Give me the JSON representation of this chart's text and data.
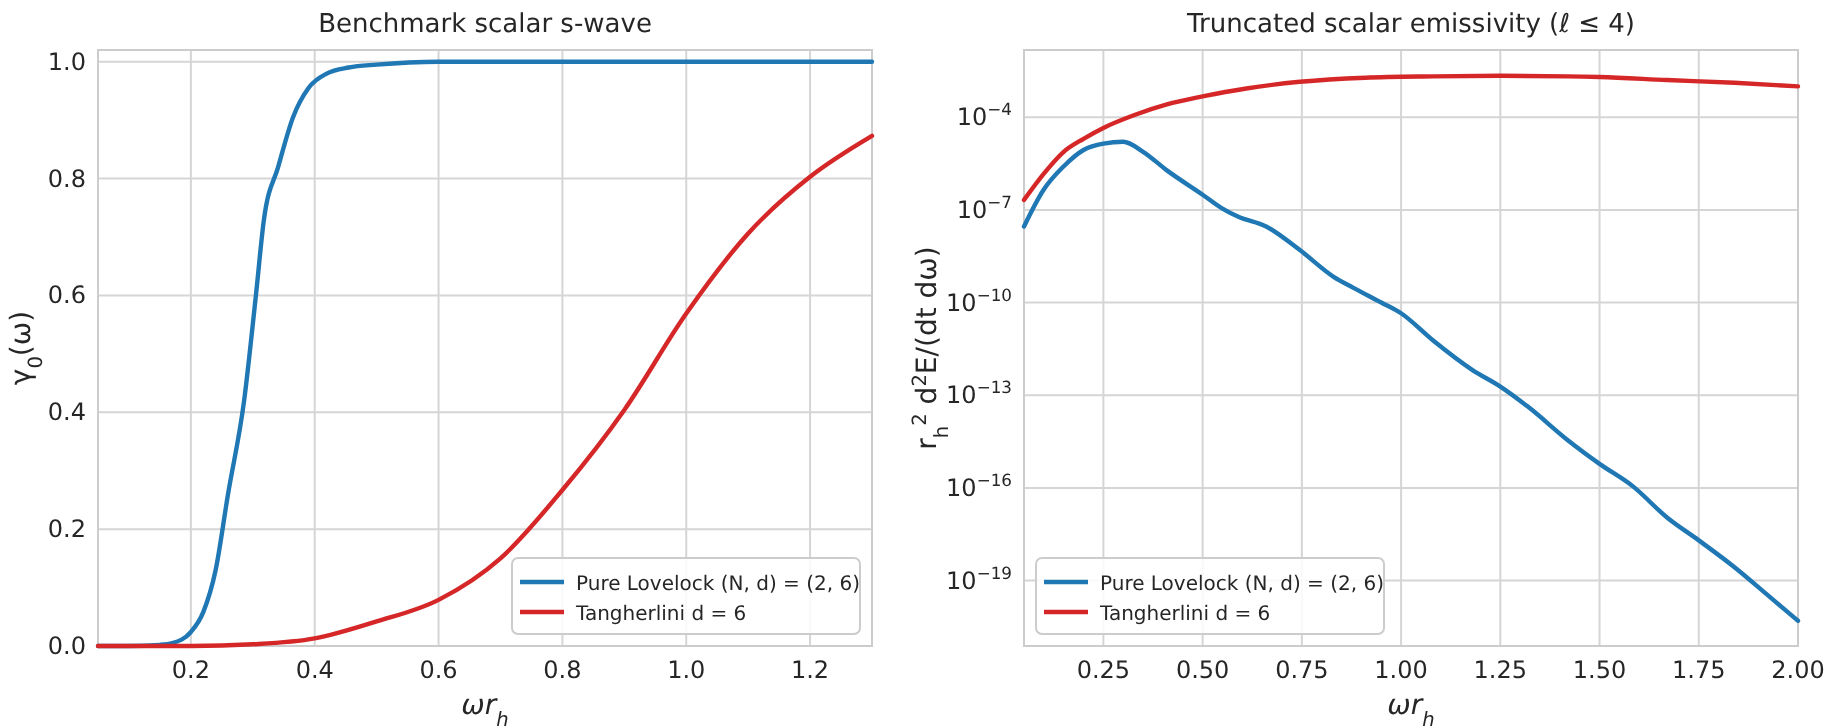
{
  "chart_data": [
    {
      "type": "line",
      "title": "Benchmark scalar s-wave",
      "xlabel": "ωr$_{h}$",
      "ylabel": "γ$_{0}$(ω)",
      "xlim": [
        0.05,
        1.3
      ],
      "ylim": [
        0,
        1.02
      ],
      "xticks": [
        {
          "value": 0.2,
          "label": "0.2"
        },
        {
          "value": 0.4,
          "label": "0.4"
        },
        {
          "value": 0.6,
          "label": "0.6"
        },
        {
          "value": 0.8,
          "label": "0.8"
        },
        {
          "value": 1.0,
          "label": "1.0"
        },
        {
          "value": 1.2,
          "label": "1.2"
        }
      ],
      "yticks": [
        {
          "value": 0,
          "label": "0.0"
        },
        {
          "value": 0.2,
          "label": "0.2"
        },
        {
          "value": 0.4,
          "label": "0.4"
        },
        {
          "value": 0.6,
          "label": "0.6"
        },
        {
          "value": 0.8,
          "label": "0.8"
        },
        {
          "value": 1.0,
          "label": "1.0"
        }
      ],
      "grid": true,
      "legend": "bottom right",
      "series": [
        {
          "name": "Pure Lovelock (N, d) = (2, 6)",
          "color": "#1f77b4",
          "x": [
            0.05,
            0.1,
            0.15,
            0.17,
            0.2,
            0.22,
            0.24,
            0.26,
            0.286,
            0.305,
            0.318,
            0.341,
            0.365,
            0.39,
            0.42,
            0.455,
            0.5,
            0.6,
            0.8,
            1.0,
            1.3
          ],
          "values": [
            0,
            0,
            0.002,
            0.005,
            0.024,
            0.058,
            0.13,
            0.26,
            0.42,
            0.6,
            0.73,
            0.82,
            0.905,
            0.955,
            0.98,
            0.99,
            0.995,
            1.0,
            1.0,
            1.0,
            1.0
          ]
        },
        {
          "name": "Tangherlini d = 6",
          "color": "#d62728",
          "x": [
            0.05,
            0.1,
            0.2,
            0.3,
            0.4,
            0.5,
            0.6,
            0.7,
            0.8,
            0.9,
            1.0,
            1.1,
            1.2,
            1.3
          ],
          "values": [
            0,
            0,
            0,
            0.003,
            0.013,
            0.042,
            0.079,
            0.15,
            0.267,
            0.404,
            0.569,
            0.706,
            0.803,
            0.873
          ]
        }
      ]
    },
    {
      "type": "line",
      "title": "Truncated scalar emissivity (ℓ ≤ 4)",
      "xlabel": "ωr$_{h}$",
      "ylabel": "r$_{h}$$^{2}$ d$^{2}$E/(dt dω)",
      "log": "y",
      "xlim": [
        0.05,
        2.0
      ],
      "ylim": [
        7.6e-22,
        0.015
      ],
      "xticks": [
        {
          "value": 0.25,
          "label": "0.25"
        },
        {
          "value": 0.5,
          "label": "0.50"
        },
        {
          "value": 0.75,
          "label": "0.75"
        },
        {
          "value": 1.0,
          "label": "1.00"
        },
        {
          "value": 1.25,
          "label": "1.25"
        },
        {
          "value": 1.5,
          "label": "1.50"
        },
        {
          "value": 1.75,
          "label": "1.75"
        },
        {
          "value": 2.0,
          "label": "2.00"
        }
      ],
      "yticks": [
        {
          "value": 1e-19,
          "label": "10$^{−19}$"
        },
        {
          "value": 1e-16,
          "label": "10$^{−16}$"
        },
        {
          "value": 1e-13,
          "label": "10$^{−13}$"
        },
        {
          "value": 1e-10,
          "label": "10$^{−10}$"
        },
        {
          "value": 1e-07,
          "label": "10$^{−7}$"
        },
        {
          "value": 0.0001,
          "label": "10$^{−4}$"
        }
      ],
      "grid": true,
      "legend": "bottom left",
      "series": [
        {
          "name": "Pure Lovelock (N, d) = (2, 6)",
          "color": "#1f77b4",
          "x": [
            0.05,
            0.099,
            0.149,
            0.2,
            0.25,
            0.3,
            0.35,
            0.41,
            0.5,
            0.55,
            0.59,
            0.66,
            0.745,
            0.83,
            0.88,
            0.95,
            1.0,
            1.08,
            1.18,
            1.25,
            1.32,
            1.42,
            1.5,
            1.585,
            1.67,
            1.75,
            1.84,
            1.92,
            2.0
          ],
          "values": [
            2.9e-08,
            4.4e-07,
            2.5e-06,
            8.7e-06,
            1.4e-05,
            1.6e-05,
            7.6e-06,
            1.9e-06,
            3.1e-07,
            1.1e-07,
            6e-08,
            2.9e-08,
            5e-09,
            6.8e-10,
            3e-10,
            1e-10,
            4.5e-11,
            6e-12,
            6.5e-13,
            1.9e-13,
            4.2e-14,
            3.5e-15,
            6e-16,
            1.1e-16,
            1.1e-17,
            2e-18,
            2.7e-19,
            3.7e-20,
            5e-21
          ]
        },
        {
          "name": "Tangherlini d = 6",
          "color": "#d62728",
          "x": [
            0.05,
            0.1,
            0.15,
            0.2,
            0.25,
            0.33,
            0.41,
            0.5,
            0.61,
            0.745,
            0.91,
            1.08,
            1.25,
            1.42,
            1.5,
            1.67,
            1.84,
            2.0
          ],
          "values": [
            2.1e-07,
            1.5e-06,
            7.6e-06,
            2e-05,
            4.5e-05,
            0.00012,
            0.00026,
            0.00047,
            0.00085,
            0.0014,
            0.0019,
            0.0021,
            0.0022,
            0.0021,
            0.002,
            0.0016,
            0.0013,
            0.001
          ]
        }
      ]
    }
  ]
}
